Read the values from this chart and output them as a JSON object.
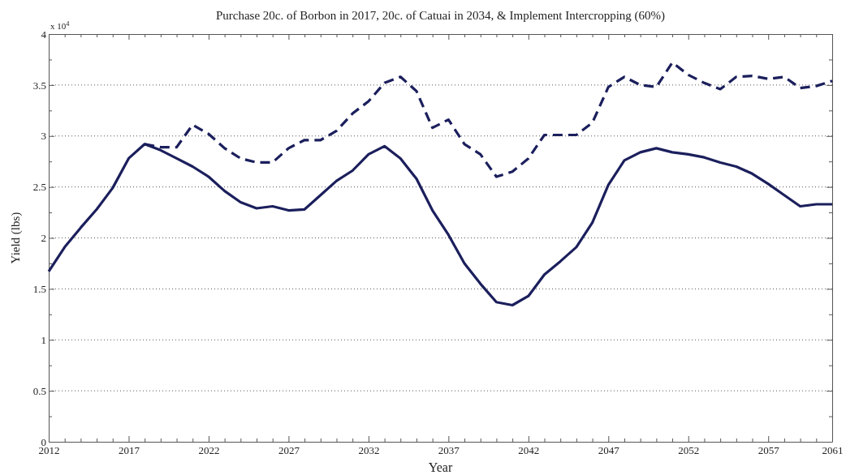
{
  "chart_data": {
    "type": "line",
    "title": "Purchase 20c. of Borbon in 2017, 20c. of Catuai in 2034, & Implement Intercropping (60%)",
    "xlabel": "Year",
    "ylabel": "Yield (lbs)",
    "annotations": [
      "x 10$^{4}$"
    ],
    "xlim": [
      2012,
      2061
    ],
    "ylim": [
      0,
      4
    ],
    "xticks": [
      2012,
      {
        "value": 2013,
        "label": null
      },
      {
        "value": 2014,
        "label": null
      },
      {
        "value": 2015,
        "label": null
      },
      {
        "value": 2016,
        "label": null
      },
      2017,
      {
        "value": 2018,
        "label": null
      },
      {
        "value": 2019,
        "label": null
      },
      {
        "value": 2020,
        "label": null
      },
      {
        "value": 2021,
        "label": null
      },
      2022,
      {
        "value": 2023,
        "label": null
      },
      {
        "value": 2024,
        "label": null
      },
      {
        "value": 2025,
        "label": null
      },
      {
        "value": 2026,
        "label": null
      },
      2027,
      {
        "value": 2028,
        "label": null
      },
      {
        "value": 2029,
        "label": null
      },
      {
        "value": 2030,
        "label": null
      },
      {
        "value": 2031,
        "label": null
      },
      2032,
      {
        "value": 2033,
        "label": null
      },
      {
        "value": 2034,
        "label": null
      },
      {
        "value": 2035,
        "label": null
      },
      {
        "value": 2036,
        "label": null
      },
      2037,
      {
        "value": 2038,
        "label": null
      },
      {
        "value": 2039,
        "label": null
      },
      {
        "value": 2040,
        "label": null
      },
      {
        "value": 2041,
        "label": null
      },
      2042,
      {
        "value": 2043,
        "label": null
      },
      {
        "value": 2044,
        "label": null
      },
      {
        "value": 2045,
        "label": null
      },
      {
        "value": 2046,
        "label": null
      },
      2047,
      {
        "value": 2048,
        "label": null
      },
      {
        "value": 2049,
        "label": null
      },
      {
        "value": 2050,
        "label": null
      },
      {
        "value": 2051,
        "label": null
      },
      2052,
      {
        "value": 2053,
        "label": null
      },
      {
        "value": 2054,
        "label": null
      },
      {
        "value": 2055,
        "label": null
      },
      {
        "value": 2056,
        "label": null
      },
      2057,
      {
        "value": 2058,
        "label": null
      },
      {
        "value": 2059,
        "label": null
      },
      {
        "value": 2060,
        "label": null
      },
      2061
    ],
    "yticks": [
      0,
      {
        "value": 0.25,
        "label": null
      },
      0.5,
      {
        "value": 0.75,
        "label": null
      },
      1,
      {
        "value": 1.25,
        "label": null
      },
      1.5,
      {
        "value": 1.75,
        "label": null
      },
      2,
      {
        "value": 2.25,
        "label": null
      },
      2.5,
      {
        "value": 2.75,
        "label": null
      },
      3,
      {
        "value": 3.25,
        "label": null
      },
      3.5,
      {
        "value": 3.75,
        "label": null
      },
      4
    ],
    "grid": "y",
    "series": [
      {
        "color": "#1b1f5c",
        "line_style": "solid",
        "x": [
          2012,
          2013,
          2014,
          2015,
          2016,
          2017,
          2018,
          2019,
          2020,
          2021,
          2022,
          2023,
          2024,
          2025,
          2026,
          2027,
          2028,
          2029,
          2030,
          2031,
          2032,
          2033,
          2034,
          2035,
          2036,
          2037,
          2038,
          2039,
          2040,
          2041,
          2042,
          2043,
          2044,
          2045,
          2046,
          2047,
          2048,
          2049,
          2050,
          2051,
          2052,
          2053,
          2054,
          2055,
          2056,
          2057,
          2058,
          2059,
          2060,
          2061
        ],
        "values": [
          1.67,
          1.91,
          2.1,
          2.28,
          2.49,
          2.78,
          2.92,
          2.86,
          2.78,
          2.7,
          2.6,
          2.46,
          2.35,
          2.29,
          2.31,
          2.27,
          2.28,
          2.42,
          2.56,
          2.66,
          2.82,
          2.9,
          2.78,
          2.58,
          2.27,
          2.03,
          1.75,
          1.55,
          1.37,
          1.34,
          1.43,
          1.64,
          1.77,
          1.91,
          2.15,
          2.52,
          2.76,
          2.84,
          2.88,
          2.84,
          2.82,
          2.79,
          2.74,
          2.7,
          2.63,
          2.53,
          2.42,
          2.31,
          2.33,
          2.33
        ]
      },
      {
        "color": "#1b1f5c",
        "line_style": "dashed",
        "x": [
          2018,
          2019,
          2020,
          2021,
          2022,
          2023,
          2024,
          2025,
          2026,
          2027,
          2028,
          2029,
          2030,
          2031,
          2032,
          2033,
          2034,
          2035,
          2036,
          2037,
          2038,
          2039,
          2040,
          2041,
          2042,
          2043,
          2044,
          2045,
          2046,
          2047,
          2048,
          2049,
          2050,
          2051,
          2052,
          2053,
          2054,
          2055,
          2056,
          2057,
          2058,
          2059,
          2060,
          2061
        ],
        "values": [
          2.92,
          2.89,
          2.89,
          3.11,
          3.02,
          2.88,
          2.78,
          2.74,
          2.74,
          2.88,
          2.96,
          2.96,
          3.05,
          3.22,
          3.34,
          3.52,
          3.58,
          3.44,
          3.08,
          3.16,
          2.92,
          2.82,
          2.6,
          2.65,
          2.78,
          3.01,
          3.01,
          3.01,
          3.13,
          3.48,
          3.58,
          3.5,
          3.48,
          3.72,
          3.6,
          3.52,
          3.46,
          3.58,
          3.59,
          3.56,
          3.58,
          3.47,
          3.49,
          3.54
        ]
      }
    ]
  }
}
